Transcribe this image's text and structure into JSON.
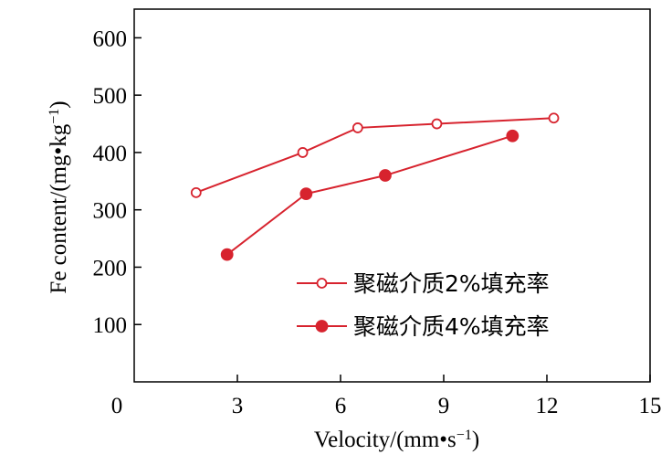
{
  "chart_data": {
    "type": "line",
    "xlabel": "Velocity/(mm•s⁻¹)",
    "ylabel": "Fe content/(mg•kg⁻¹)",
    "xlim": [
      0,
      15
    ],
    "ylim": [
      0,
      650
    ],
    "x_ticks": [
      3,
      6,
      9,
      12,
      15
    ],
    "y_ticks": [
      100,
      200,
      300,
      400,
      500,
      600
    ],
    "origin_label": "0",
    "grid": false,
    "legend_position": "bottom-right",
    "series": [
      {
        "name": "聚磁介质2%填充率",
        "marker": "open-circle",
        "color": "#d7232e",
        "x": [
          1.8,
          4.9,
          6.5,
          8.8,
          12.2
        ],
        "y": [
          330,
          400,
          443,
          450,
          460
        ]
      },
      {
        "name": "聚磁介质4%填充率",
        "marker": "filled-circle",
        "color": "#d7232e",
        "x": [
          2.7,
          5.0,
          7.3,
          11.0
        ],
        "y": [
          222,
          328,
          360,
          429
        ]
      }
    ]
  }
}
